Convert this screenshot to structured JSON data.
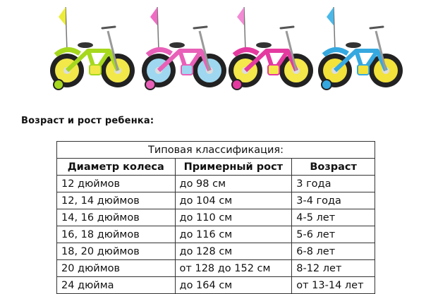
{
  "bikes": [
    {
      "name": "green-bike",
      "frame": "#a6d81e",
      "accent": "#f2e84a",
      "flag": "#ecec3a"
    },
    {
      "name": "pink-bike",
      "frame": "#e860b8",
      "accent": "#9fd7f0",
      "flag": "#f06cc4"
    },
    {
      "name": "magenta-bike",
      "frame": "#e43aa0",
      "accent": "#f4e84a",
      "flag": "#f28ad4"
    },
    {
      "name": "blue-bike",
      "frame": "#35a8e0",
      "accent": "#f2e23a",
      "flag": "#4ab8ea"
    }
  ],
  "heading": "Возраст и рост ребенка:",
  "table": {
    "caption": "Типовая классификация:",
    "headers": [
      "Диаметр колеса",
      "Примерный рост",
      "Возраст"
    ],
    "rows": [
      [
        "12 дюймов",
        "до 98 см",
        "3 года"
      ],
      [
        "12, 14 дюймов",
        "до 104 см",
        "3-4 года"
      ],
      [
        "14, 16 дюймов",
        "до 110 см",
        "4-5 лет"
      ],
      [
        "16, 18 дюймов",
        "до 116 см",
        "5-6 лет"
      ],
      [
        "18, 20 дюймов",
        "до 128 см",
        "6-8 лет"
      ],
      [
        "20 дюймов",
        "от 128 до 152 см",
        "8-12 лет"
      ],
      [
        "24 дюйма",
        "до 164 см",
        "от 13-14 лет"
      ]
    ]
  }
}
